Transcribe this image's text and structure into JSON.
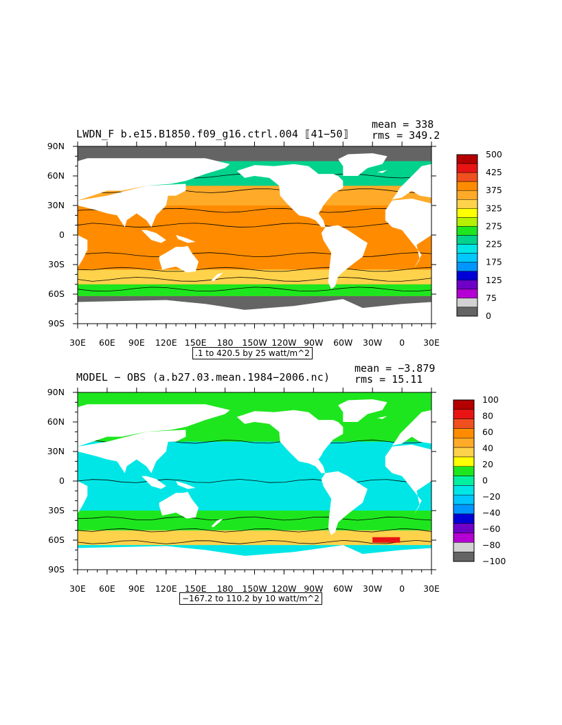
{
  "chart_data": [
    {
      "type": "heatmap",
      "title": "LWDN_F b.e15.B1850.f09_g16.ctrl.004 ⟦41−50⟧",
      "stats": {
        "mean": "mean = 338",
        "rms": "rms = 349.2"
      },
      "range_label": ".1 to 420.5 by 25 watt/m^2",
      "x_ticks": [
        "30E",
        "60E",
        "90E",
        "120E",
        "150E",
        "180",
        "150W",
        "120W",
        "90W",
        "60W",
        "30W",
        "0",
        "30E"
      ],
      "y_ticks": [
        "90N",
        "60N",
        "30N",
        "0",
        "30S",
        "60S",
        "90S"
      ],
      "xlim": [
        30,
        390
      ],
      "ylim": [
        -90,
        90
      ],
      "colorbar": {
        "labels": [
          "500",
          "425",
          "375",
          "325",
          "275",
          "225",
          "175",
          "125",
          "75",
          "0"
        ],
        "colors": [
          "#b40000",
          "#e81414",
          "#f0501e",
          "#ff8c00",
          "#ffaa28",
          "#ffd24b",
          "#ffff00",
          "#b4f000",
          "#1ee61e",
          "#00d28c",
          "#00e6e6",
          "#00c8ff",
          "#0096ff",
          "#0000d7",
          "#6e00c8",
          "#b400d2",
          "#d2d2d2",
          "#646464"
        ]
      },
      "zones": [
        {
          "lat": [
            -90,
            -62
          ],
          "value": "0-75"
        },
        {
          "lat": [
            -62,
            -50
          ],
          "value": "275-325"
        },
        {
          "lat": [
            -50,
            -35
          ],
          "value": "325-350"
        },
        {
          "lat": [
            -35,
            30
          ],
          "value": "375-400"
        },
        {
          "lat": [
            30,
            50
          ],
          "value": "325-375"
        },
        {
          "lat": [
            50,
            75
          ],
          "value": "225-300"
        },
        {
          "lat": [
            75,
            90
          ],
          "value": "0-75"
        }
      ]
    },
    {
      "type": "heatmap",
      "title": "MODEL − OBS (a.b27.03.mean.1984−2006.nc)",
      "stats": {
        "mean": "mean = −3.879",
        "rms": "rms = 15.11"
      },
      "range_label": "−167.2 to 110.2 by 10 watt/m^2",
      "x_ticks": [
        "30E",
        "60E",
        "90E",
        "120E",
        "150E",
        "180",
        "150W",
        "120W",
        "90W",
        "60W",
        "30W",
        "0",
        "30E"
      ],
      "y_ticks": [
        "90N",
        "60N",
        "30N",
        "0",
        "30S",
        "60S",
        "90S"
      ],
      "xlim": [
        30,
        390
      ],
      "ylim": [
        -90,
        90
      ],
      "colorbar": {
        "labels": [
          "100",
          "80",
          "60",
          "40",
          "20",
          "0",
          "−20",
          "−40",
          "−60",
          "−80",
          "−100"
        ],
        "colors": [
          "#b40000",
          "#e81414",
          "#f0501e",
          "#ff8c00",
          "#ffaa28",
          "#ffd24b",
          "#ffff00",
          "#1ee61e",
          "#00f0a0",
          "#00e6e6",
          "#00c8ff",
          "#0096ff",
          "#0000d7",
          "#6e00c8",
          "#b400d2",
          "#d2d2d2",
          "#646464"
        ]
      },
      "zones": [
        {
          "lat": [
            -90,
            -65
          ],
          "value": "-20-0"
        },
        {
          "lat": [
            -65,
            -50
          ],
          "value": "20-40"
        },
        {
          "lat": [
            -50,
            -30
          ],
          "value": "0-20"
        },
        {
          "lat": [
            -30,
            40
          ],
          "value": "-20-0"
        },
        {
          "lat": [
            40,
            90
          ],
          "value": "0-20"
        }
      ]
    }
  ]
}
